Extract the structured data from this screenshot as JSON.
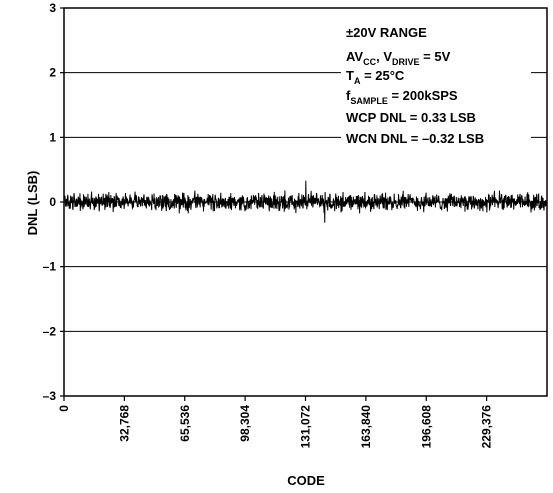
{
  "chart_data": {
    "type": "line",
    "xlabel": "CODE",
    "ylabel": "DNL (LSB)",
    "xlim": [
      0,
      262143
    ],
    "ylim": [
      -3,
      3
    ],
    "x_ticks": [
      0,
      32768,
      65536,
      98304,
      131072,
      163840,
      196608,
      229376
    ],
    "x_tick_labels": [
      "0",
      "32,768",
      "65,536",
      "98,304",
      "131,072",
      "163,840",
      "196,608",
      "229,376"
    ],
    "y_ticks": [
      -3,
      -2,
      -1,
      0,
      1,
      2,
      3
    ],
    "y_tick_labels": [
      "–3",
      "–2",
      "–1",
      "0",
      "1",
      "2",
      "3"
    ],
    "grid": "horizontal",
    "legend": "none",
    "series_color": "#000000",
    "dnl_max": 0.33,
    "dnl_min": -0.32,
    "typical_band": [
      -0.15,
      0.15
    ],
    "annotations": {
      "range": "±20V RANGE",
      "supply_prefix": "AV",
      "supply_sub1": "CC",
      "supply_mid": ", V",
      "supply_sub2": "DRIVE",
      "supply_suffix": " = 5V",
      "temp_prefix": "T",
      "temp_sub": "A",
      "temp_suffix": " = 25°C",
      "fs_prefix": "f",
      "fs_sub": "SAMPLE",
      "fs_suffix": " = 200kSPS",
      "wcp": "WCP DNL = 0.33 LSB",
      "wcn": "WCN DNL = –0.32 LSB"
    }
  }
}
